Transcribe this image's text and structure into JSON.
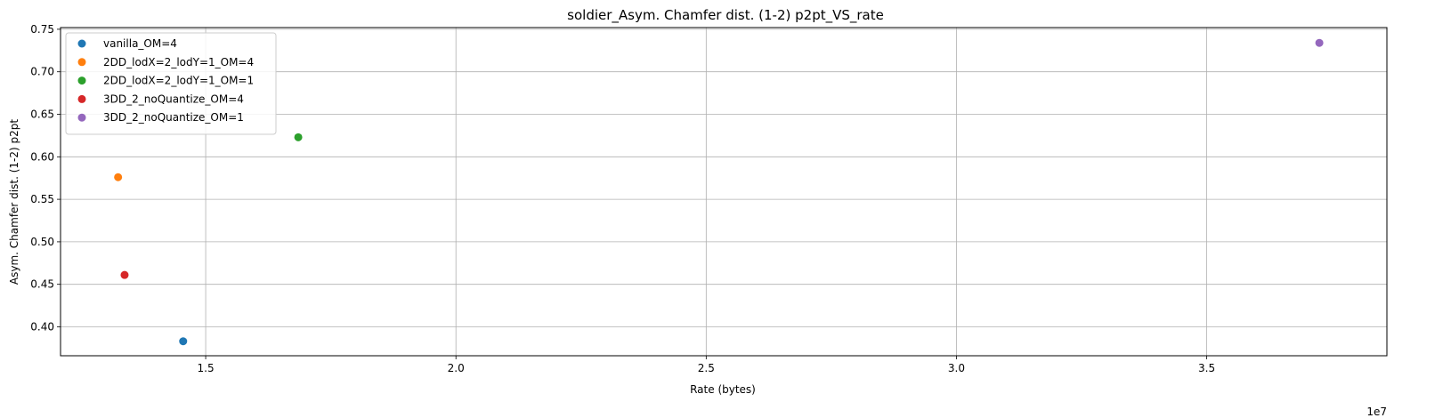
{
  "chart_data": {
    "type": "scatter",
    "title": "soldier_Asym. Chamfer dist. (1-2) p2pt_VS_rate",
    "xlabel": "Rate (bytes)",
    "ylabel": "Asym. Chamfer dist. (1-2) p2pt",
    "x_offset_label": "1e7",
    "xlim": [
      12100000.0,
      38600000.0
    ],
    "ylim": [
      0.366,
      0.752
    ],
    "x_ticks": [
      15000000.0,
      20000000.0,
      25000000.0,
      30000000.0,
      35000000.0
    ],
    "x_tick_labels": [
      "1.5",
      "2.0",
      "2.5",
      "3.0",
      "3.5"
    ],
    "y_ticks": [
      0.4,
      0.45,
      0.5,
      0.55,
      0.6,
      0.65,
      0.7,
      0.75
    ],
    "y_tick_labels": [
      "0.40",
      "0.45",
      "0.50",
      "0.55",
      "0.60",
      "0.65",
      "0.70",
      "0.75"
    ],
    "grid": true,
    "legend_position": "top-left",
    "series": [
      {
        "name": "vanilla_OM=4",
        "color": "#1f77b4",
        "points": [
          {
            "x": 14550000.0,
            "y": 0.383
          }
        ]
      },
      {
        "name": "2DD_lodX=2_lodY=1_OM=4",
        "color": "#ff7f0e",
        "points": [
          {
            "x": 13250000.0,
            "y": 0.576
          }
        ]
      },
      {
        "name": "2DD_lodX=2_lodY=1_OM=1",
        "color": "#2ca02c",
        "points": [
          {
            "x": 16850000.0,
            "y": 0.623
          }
        ]
      },
      {
        "name": "3DD_2_noQuantize_OM=4",
        "color": "#d62728",
        "points": [
          {
            "x": 13380000.0,
            "y": 0.461
          }
        ]
      },
      {
        "name": "3DD_2_noQuantize_OM=1",
        "color": "#9467bd",
        "points": [
          {
            "x": 37250000.0,
            "y": 0.734
          }
        ]
      }
    ]
  }
}
